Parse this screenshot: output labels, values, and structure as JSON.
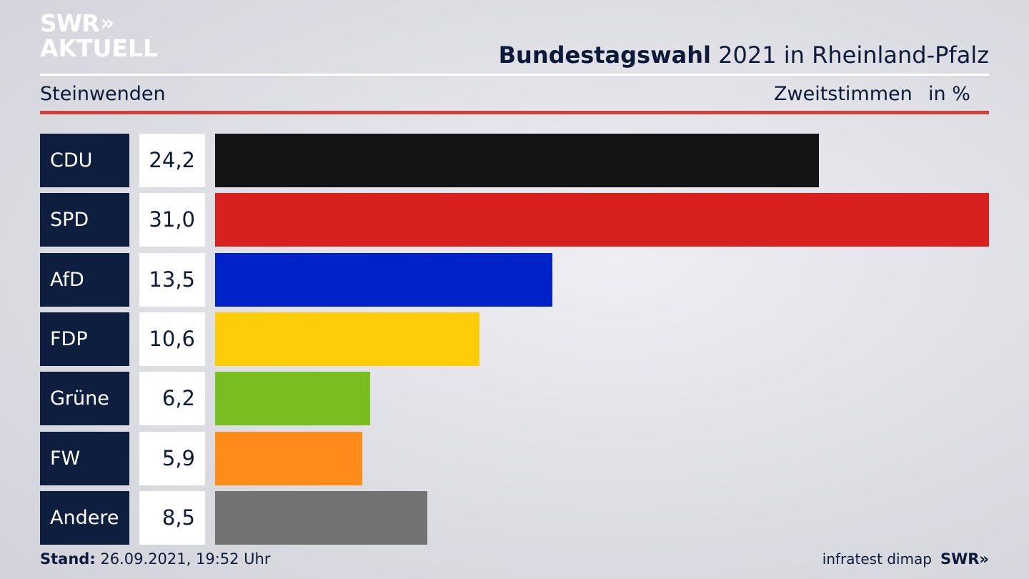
{
  "logo": {
    "line1": "SWR",
    "chevrons": "»",
    "line2": "AKTUELL"
  },
  "header": {
    "title_bold": "Bundestagswahl",
    "title_rest": " 2021 in Rheinland-Pfalz",
    "region": "Steinwenden",
    "measure": "Zweitstimmen",
    "unit": "in %"
  },
  "chart_data": {
    "type": "bar",
    "orientation": "horizontal",
    "categories": [
      "CDU",
      "SPD",
      "AfD",
      "FDP",
      "Grüne",
      "FW",
      "Andere"
    ],
    "values": [
      24.2,
      31.0,
      13.5,
      10.6,
      6.2,
      5.9,
      8.5
    ],
    "value_labels": [
      "24,2",
      "31,0",
      "13,5",
      "10,6",
      "6,2",
      "5,9",
      "8,5"
    ],
    "colors": [
      "#141414",
      "#d8201f",
      "#0022c9",
      "#fecd0a",
      "#78be1e",
      "#ff8c1a",
      "#727272"
    ],
    "xlim": [
      0,
      31.0
    ]
  },
  "footer": {
    "stand_label": "Stand:",
    "stand_value": " 26.09.2021, 19:52 Uhr",
    "source": "infratest dimap",
    "brand": "SWR»"
  }
}
